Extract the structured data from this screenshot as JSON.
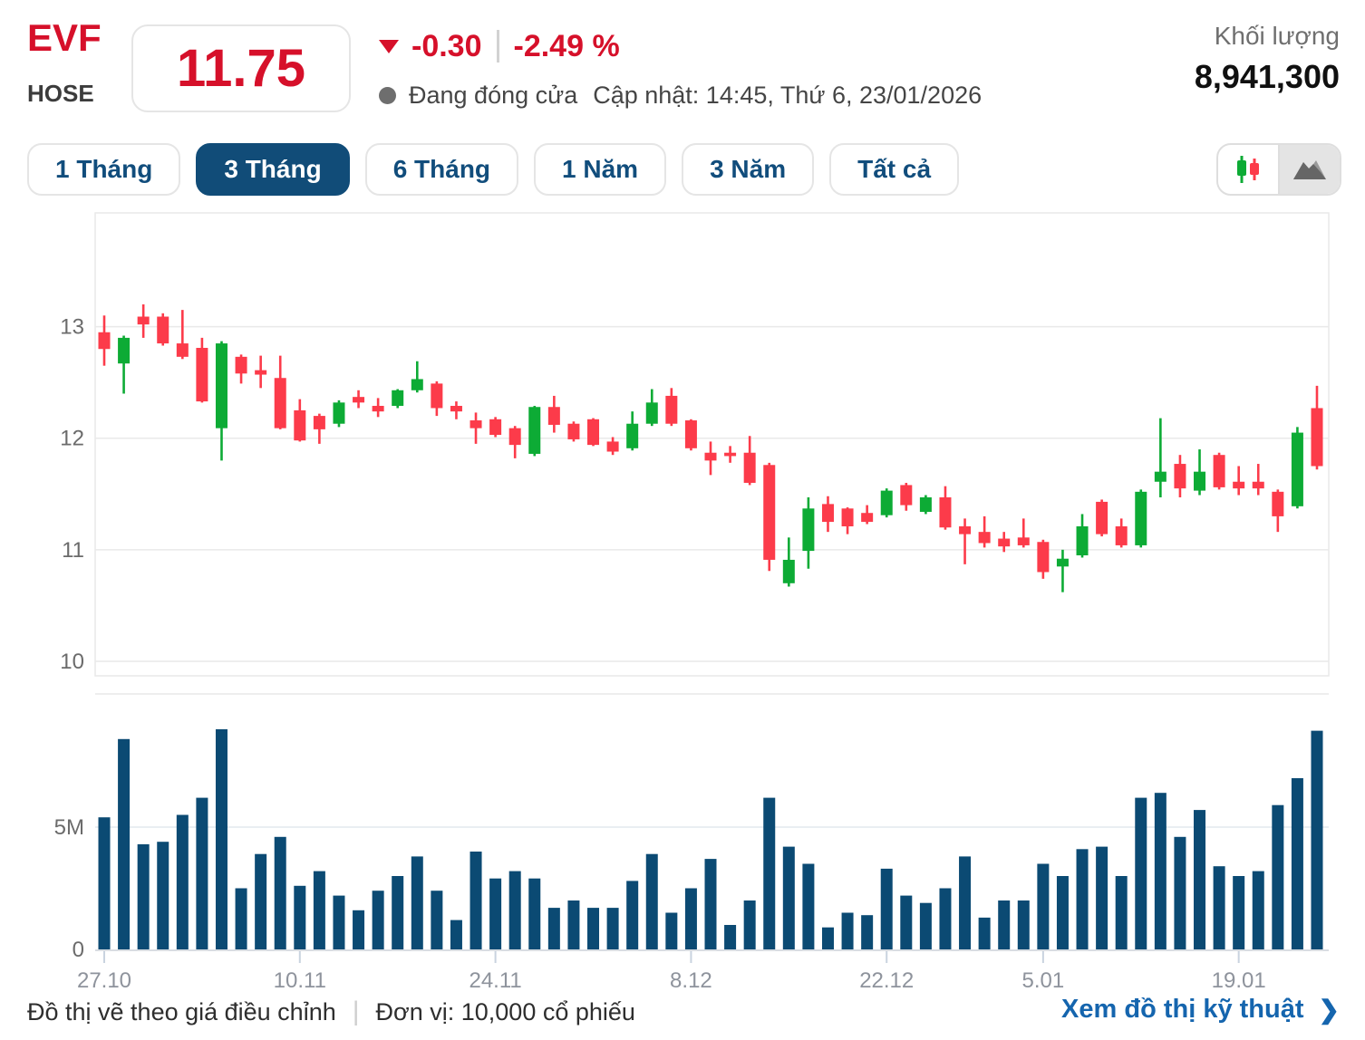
{
  "header": {
    "ticker": "EVF",
    "exchange": "HOSE",
    "price": "11.75",
    "change": "-0.30",
    "change_percent": "-2.49 %",
    "market_status": "Đang đóng cửa",
    "updated": "Cập nhật: 14:45, Thứ 6, 23/01/2026",
    "volume_label": "Khối lượng",
    "volume_value": "8,941,300"
  },
  "tabs": {
    "items": [
      {
        "label": "1 Tháng",
        "active": false
      },
      {
        "label": "3 Tháng",
        "active": true
      },
      {
        "label": "6 Tháng",
        "active": false
      },
      {
        "label": "1 Năm",
        "active": false
      },
      {
        "label": "3 Năm",
        "active": false
      },
      {
        "label": "Tất cả",
        "active": false
      }
    ]
  },
  "chart_toggle": {
    "options": [
      "candlestick",
      "area"
    ],
    "selected": "candlestick",
    "icons": [
      "candlestick-icon",
      "area-chart-icon"
    ]
  },
  "colors": {
    "header_red": "#d6102a",
    "candle_up": "#0dab35",
    "candle_down": "#fc3b4a",
    "volume_bar": "#0b4a73",
    "tab_navy": "#114c78",
    "link_blue": "#1565ae",
    "gridline": "#e9e9e9",
    "axis_label": "#6b6b6b",
    "x_label": "#8e939c"
  },
  "chart_data": {
    "type": "candlestick+volume",
    "title": "EVF 3-month daily price chart",
    "price_axis_ticks": [
      13,
      12,
      11,
      10
    ],
    "volume_axis_ticks": [
      "5M",
      "0"
    ],
    "x_ticks": [
      {
        "index": 0,
        "label": "27.10"
      },
      {
        "index": 10,
        "label": "10.11"
      },
      {
        "index": 20,
        "label": "24.11"
      },
      {
        "index": 30,
        "label": "8.12"
      },
      {
        "index": 40,
        "label": "22.12"
      },
      {
        "index": 48,
        "label": "5.01"
      },
      {
        "index": 58,
        "label": "19.01"
      }
    ],
    "price_range_shown": [
      9.87,
      14.02
    ],
    "volume_unit": "M",
    "candles_ohlcv": [
      [
        12.95,
        13.1,
        12.65,
        12.8,
        5.4
      ],
      [
        12.67,
        12.92,
        12.4,
        12.9,
        8.6
      ],
      [
        13.09,
        13.2,
        12.9,
        13.02,
        4.3
      ],
      [
        13.09,
        13.12,
        12.83,
        12.85,
        4.4
      ],
      [
        12.85,
        13.15,
        12.71,
        12.73,
        5.5
      ],
      [
        12.81,
        12.9,
        12.32,
        12.33,
        6.2
      ],
      [
        12.09,
        12.87,
        11.8,
        12.85,
        9.0
      ],
      [
        12.73,
        12.75,
        12.49,
        12.58,
        2.5
      ],
      [
        12.61,
        12.74,
        12.45,
        12.57,
        3.9
      ],
      [
        12.54,
        12.74,
        12.08,
        12.09,
        4.6
      ],
      [
        12.25,
        12.35,
        11.97,
        11.98,
        2.6
      ],
      [
        12.2,
        12.22,
        11.95,
        12.08,
        3.2
      ],
      [
        12.13,
        12.34,
        12.1,
        12.32,
        2.2
      ],
      [
        12.37,
        12.43,
        12.27,
        12.32,
        1.6
      ],
      [
        12.29,
        12.36,
        12.19,
        12.24,
        2.4
      ],
      [
        12.29,
        12.44,
        12.27,
        12.43,
        3.0
      ],
      [
        12.43,
        12.69,
        12.41,
        12.53,
        3.8
      ],
      [
        12.49,
        12.51,
        12.2,
        12.27,
        2.4
      ],
      [
        12.29,
        12.33,
        12.17,
        12.24,
        1.2
      ],
      [
        12.16,
        12.23,
        11.95,
        12.09,
        4.0
      ],
      [
        12.17,
        12.19,
        12.01,
        12.03,
        2.9
      ],
      [
        12.09,
        12.11,
        11.82,
        11.94,
        3.2
      ],
      [
        11.86,
        12.29,
        11.84,
        12.28,
        2.9
      ],
      [
        12.28,
        12.38,
        12.05,
        12.12,
        1.7
      ],
      [
        12.13,
        12.15,
        11.97,
        11.99,
        2.0
      ],
      [
        12.17,
        12.18,
        11.93,
        11.94,
        1.7
      ],
      [
        11.97,
        12.01,
        11.85,
        11.88,
        1.7
      ],
      [
        11.91,
        12.24,
        11.89,
        12.13,
        2.8
      ],
      [
        12.13,
        12.44,
        12.11,
        12.32,
        3.9
      ],
      [
        12.38,
        12.45,
        12.11,
        12.13,
        1.5
      ],
      [
        12.16,
        12.17,
        11.89,
        11.91,
        2.5
      ],
      [
        11.87,
        11.97,
        11.67,
        11.8,
        3.7
      ],
      [
        11.87,
        11.93,
        11.78,
        11.84,
        1.0
      ],
      [
        11.87,
        12.02,
        11.58,
        11.6,
        2.0
      ],
      [
        11.76,
        11.78,
        10.81,
        10.91,
        6.2
      ],
      [
        10.7,
        11.11,
        10.67,
        10.91,
        4.2
      ],
      [
        10.99,
        11.47,
        10.83,
        11.37,
        3.5
      ],
      [
        11.41,
        11.48,
        11.16,
        11.25,
        0.9
      ],
      [
        11.37,
        11.38,
        11.14,
        11.21,
        1.5
      ],
      [
        11.33,
        11.4,
        11.23,
        11.25,
        1.4
      ],
      [
        11.31,
        11.55,
        11.29,
        11.53,
        3.3
      ],
      [
        11.58,
        11.6,
        11.35,
        11.4,
        2.2
      ],
      [
        11.34,
        11.49,
        11.32,
        11.47,
        1.9
      ],
      [
        11.47,
        11.57,
        11.18,
        11.2,
        2.5
      ],
      [
        11.21,
        11.28,
        10.87,
        11.14,
        3.8
      ],
      [
        11.16,
        11.3,
        11.02,
        11.06,
        1.3
      ],
      [
        11.1,
        11.16,
        10.98,
        11.03,
        2.0
      ],
      [
        11.11,
        11.28,
        11.02,
        11.04,
        2.0
      ],
      [
        11.07,
        11.09,
        10.74,
        10.8,
        3.5
      ],
      [
        10.85,
        11.0,
        10.62,
        10.92,
        3.0
      ],
      [
        10.95,
        11.32,
        10.93,
        11.21,
        4.1
      ],
      [
        11.43,
        11.45,
        11.12,
        11.14,
        4.2
      ],
      [
        11.21,
        11.28,
        11.02,
        11.04,
        3.0
      ],
      [
        11.04,
        11.54,
        11.02,
        11.52,
        6.2
      ],
      [
        11.61,
        12.18,
        11.47,
        11.7,
        6.4
      ],
      [
        11.77,
        11.85,
        11.47,
        11.55,
        4.6
      ],
      [
        11.53,
        11.9,
        11.49,
        11.7,
        5.7
      ],
      [
        11.85,
        11.87,
        11.54,
        11.56,
        3.4
      ],
      [
        11.61,
        11.75,
        11.49,
        11.55,
        3.0
      ],
      [
        11.61,
        11.77,
        11.49,
        11.55,
        3.2
      ],
      [
        11.52,
        11.54,
        11.16,
        11.3,
        5.9
      ],
      [
        11.39,
        12.1,
        11.37,
        12.05,
        7.0
      ],
      [
        12.27,
        12.47,
        11.72,
        11.75,
        8.94
      ]
    ]
  },
  "footer": {
    "note_adjusted": "Đồ thị vẽ theo giá điều chỉnh",
    "note_unit": "Đơn vị: 10,000 cổ phiếu",
    "link_technical": "Xem đồ thị kỹ thuật",
    "chevron": "❯",
    "separator": "|"
  }
}
